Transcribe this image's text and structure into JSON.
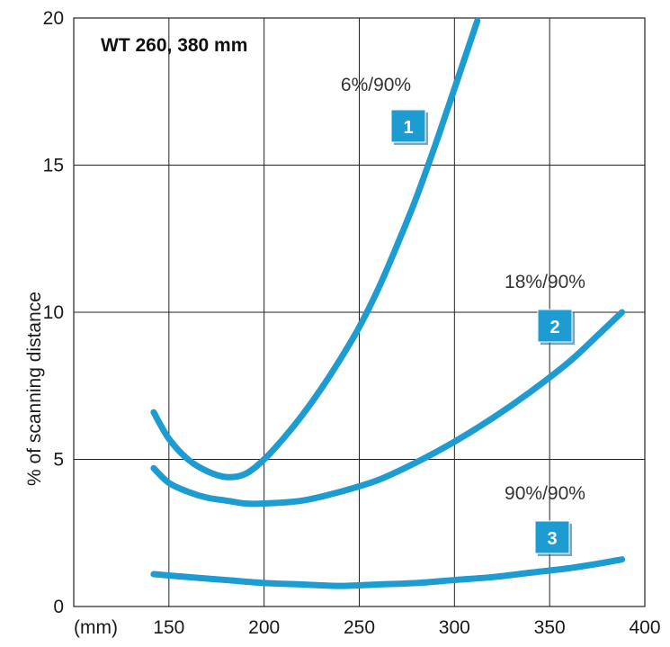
{
  "chart_data": {
    "type": "line",
    "title": "WT 260, 380 mm",
    "xlabel": "",
    "x_unit_label": "(mm)",
    "ylabel": "% of scanning distance",
    "xlim": [
      100,
      400
    ],
    "ylim": [
      0,
      20
    ],
    "x_ticks": [
      "150",
      "200",
      "250",
      "300",
      "350",
      "400"
    ],
    "y_ticks": [
      "0",
      "5",
      "10",
      "15",
      "20"
    ],
    "grid": true,
    "line_color": "#1c9cd0",
    "badge_color": "#1c9cd0",
    "series": [
      {
        "name": "6%/90%",
        "badge": "1",
        "points": [
          [
            142,
            6.6
          ],
          [
            150,
            5.7
          ],
          [
            160,
            5.0
          ],
          [
            170,
            4.6
          ],
          [
            180,
            4.4
          ],
          [
            190,
            4.5
          ],
          [
            200,
            5.0
          ],
          [
            210,
            5.7
          ],
          [
            220,
            6.5
          ],
          [
            230,
            7.4
          ],
          [
            240,
            8.4
          ],
          [
            250,
            9.5
          ],
          [
            260,
            10.8
          ],
          [
            270,
            12.3
          ],
          [
            280,
            13.9
          ],
          [
            290,
            15.7
          ],
          [
            300,
            17.6
          ],
          [
            312,
            19.9
          ]
        ]
      },
      {
        "name": "18%/90%",
        "badge": "2",
        "points": [
          [
            142,
            4.7
          ],
          [
            150,
            4.2
          ],
          [
            160,
            3.9
          ],
          [
            170,
            3.7
          ],
          [
            180,
            3.6
          ],
          [
            190,
            3.5
          ],
          [
            200,
            3.5
          ],
          [
            220,
            3.6
          ],
          [
            240,
            3.9
          ],
          [
            260,
            4.3
          ],
          [
            280,
            4.9
          ],
          [
            300,
            5.6
          ],
          [
            320,
            6.4
          ],
          [
            340,
            7.3
          ],
          [
            360,
            8.3
          ],
          [
            375,
            9.2
          ],
          [
            388,
            10.0
          ]
        ]
      },
      {
        "name": "90%/90%",
        "badge": "3",
        "points": [
          [
            142,
            1.1
          ],
          [
            160,
            1.0
          ],
          [
            180,
            0.9
          ],
          [
            200,
            0.8
          ],
          [
            220,
            0.75
          ],
          [
            240,
            0.7
          ],
          [
            260,
            0.75
          ],
          [
            280,
            0.8
          ],
          [
            300,
            0.9
          ],
          [
            320,
            1.0
          ],
          [
            340,
            1.15
          ],
          [
            360,
            1.3
          ],
          [
            375,
            1.45
          ],
          [
            388,
            1.6
          ]
        ]
      }
    ]
  }
}
